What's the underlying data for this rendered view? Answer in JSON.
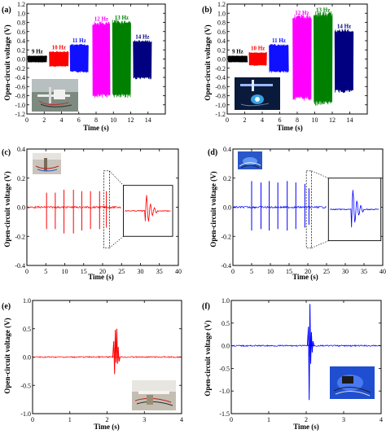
{
  "chart_data": [
    {
      "panel": "(a)",
      "type": "line",
      "xlabel": "Time (s)",
      "ylabel": "Open-circuit voltage (V)",
      "xlim": [
        0,
        16
      ],
      "ylim": [
        -1.2,
        1.2
      ],
      "xticks": [
        "0",
        "2",
        "4",
        "6",
        "8",
        "10",
        "12",
        "14"
      ],
      "yticks": [
        "-1.2",
        "-1.0",
        "-0.8",
        "-0.6",
        "-0.4",
        "-0.2",
        "0.0",
        "0.2",
        "0.4",
        "0.6",
        "0.8",
        "1.0",
        "1.2"
      ],
      "series": [
        {
          "name": "9 Hz",
          "color": "#000000",
          "x": [
            0.1,
            2.3
          ],
          "y": [
            -0.07,
            0.07
          ]
        },
        {
          "name": "10 Hz",
          "color": "#ff0000",
          "x": [
            2.6,
            4.8
          ],
          "y": [
            -0.16,
            0.16
          ]
        },
        {
          "name": "11 Hz",
          "color": "#1010ff",
          "x": [
            5.0,
            7.1
          ],
          "y": [
            -0.28,
            0.31
          ]
        },
        {
          "name": "12 Hz",
          "color": "#ff00ff",
          "x": [
            7.6,
            9.6
          ],
          "y": [
            -0.8,
            0.78
          ]
        },
        {
          "name": "13 Hz",
          "color": "#008000",
          "x": [
            9.9,
            12.0
          ],
          "y": [
            -0.8,
            0.81
          ]
        },
        {
          "name": "14 Hz",
          "color": "#000080",
          "x": [
            12.3,
            14.4
          ],
          "y": [
            -0.42,
            0.39
          ]
        }
      ]
    },
    {
      "panel": "(b)",
      "type": "line",
      "xlabel": "Time (s)",
      "ylabel": "Open-circuit voltage (V)",
      "xlim": [
        0,
        16
      ],
      "ylim": [
        -1.2,
        1.2
      ],
      "xticks": [
        "0",
        "2",
        "4",
        "6",
        "8",
        "10",
        "12",
        "14"
      ],
      "yticks": [
        "-1.2",
        "-1.0",
        "-0.8",
        "-0.6",
        "-0.4",
        "-0.2",
        "0.0",
        "0.2",
        "0.4",
        "0.6",
        "0.8",
        "1.0",
        "1.2"
      ],
      "series": [
        {
          "name": "9 Hz",
          "color": "#000000",
          "x": [
            0.1,
            2.3
          ],
          "y": [
            -0.07,
            0.07
          ]
        },
        {
          "name": "10 Hz",
          "color": "#ff0000",
          "x": [
            2.5,
            4.5
          ],
          "y": [
            -0.14,
            0.14
          ]
        },
        {
          "name": "11 Hz",
          "color": "#1010ff",
          "x": [
            4.8,
            7.0
          ],
          "y": [
            -0.28,
            0.31
          ]
        },
        {
          "name": "12 Hz",
          "color": "#ff00ff",
          "x": [
            7.5,
            9.6
          ],
          "y": [
            -0.86,
            0.92
          ]
        },
        {
          "name": "13 Hz",
          "color": "#008000",
          "x": [
            9.9,
            12.0
          ],
          "y": [
            -0.96,
            0.98
          ]
        },
        {
          "name": "14 Hz",
          "color": "#000080",
          "x": [
            12.3,
            14.4
          ],
          "y": [
            -0.7,
            0.62
          ]
        }
      ]
    },
    {
      "panel": "(c)",
      "type": "line",
      "xlabel": "Time (s)",
      "ylabel": "Open-circuit voltage (V)",
      "xlim": [
        0,
        40
      ],
      "ylim": [
        -0.4,
        0.4
      ],
      "xticks": [
        "0",
        "5",
        "10",
        "15",
        "20",
        "25",
        "30",
        "35",
        "40"
      ],
      "yticks": [
        "-0.4",
        "-0.2",
        "0.0",
        "0.2",
        "0.4"
      ],
      "color": "#ff0000",
      "signal_span": [
        0,
        25
      ],
      "spikes": [
        {
          "x": 5.2,
          "y": [
            -0.15,
            0.1
          ]
        },
        {
          "x": 7.5,
          "y": [
            -0.15,
            0.1
          ]
        },
        {
          "x": 9.8,
          "y": [
            -0.18,
            0.12
          ]
        },
        {
          "x": 12.3,
          "y": [
            -0.18,
            0.12
          ]
        },
        {
          "x": 14.5,
          "y": [
            -0.16,
            0.11
          ]
        },
        {
          "x": 16.8,
          "y": [
            -0.15,
            0.11
          ]
        },
        {
          "x": 19.2,
          "y": [
            -0.15,
            0.11
          ]
        },
        {
          "x": 21.0,
          "y": [
            -0.14,
            0.11
          ]
        }
      ],
      "zoom_window_x": [
        20.3,
        21.8
      ],
      "inset_x": [
        25.5,
        38.5
      ],
      "inset_y": [
        -0.2,
        0.15
      ]
    },
    {
      "panel": "(d)",
      "type": "line",
      "xlabel": "Time (s)",
      "ylabel": "Open-circuit voltage (V)",
      "xlim": [
        0,
        40
      ],
      "ylim": [
        -0.4,
        0.4
      ],
      "xticks": [
        "0",
        "5",
        "10",
        "15",
        "20",
        "25",
        "30",
        "35",
        "40"
      ],
      "yticks": [
        "-0.4",
        "-0.2",
        "0.0",
        "0.2",
        "0.4"
      ],
      "color": "#0000ff",
      "signal_span": [
        0,
        25
      ],
      "spikes": [
        {
          "x": 5.0,
          "y": [
            -0.16,
            0.18
          ]
        },
        {
          "x": 7.5,
          "y": [
            -0.15,
            0.17
          ]
        },
        {
          "x": 9.7,
          "y": [
            -0.16,
            0.18
          ]
        },
        {
          "x": 12.0,
          "y": [
            -0.15,
            0.17
          ]
        },
        {
          "x": 14.5,
          "y": [
            -0.16,
            0.18
          ]
        },
        {
          "x": 16.8,
          "y": [
            -0.15,
            0.17
          ]
        },
        {
          "x": 19.2,
          "y": [
            -0.14,
            0.16
          ]
        },
        {
          "x": 20.3,
          "y": [
            -0.12,
            0.13
          ]
        }
      ],
      "zoom_window_x": [
        19.6,
        21.0
      ],
      "inset_x": [
        25.5,
        39.5
      ],
      "inset_y": [
        -0.23,
        0.2
      ]
    },
    {
      "panel": "(e)",
      "type": "line",
      "xlabel": "Time (s)",
      "ylabel": "Open-circuit voltage (V)",
      "xlim": [
        0,
        4
      ],
      "ylim": [
        -1.0,
        1.0
      ],
      "xticks": [
        "0",
        "1",
        "2",
        "3",
        "4"
      ],
      "yticks": [
        "-1.0",
        "-0.5",
        "0.0",
        "0.5",
        "1.0"
      ],
      "color": "#ff0000",
      "burst": [
        {
          "x": 2.18,
          "y": 0.28
        },
        {
          "x": 2.2,
          "y": -0.3
        },
        {
          "x": 2.22,
          "y": 0.48
        },
        {
          "x": 2.24,
          "y": -0.1
        },
        {
          "x": 2.26,
          "y": 0.5
        },
        {
          "x": 2.28,
          "y": -0.12
        },
        {
          "x": 2.3,
          "y": 0.18
        },
        {
          "x": 2.32,
          "y": -0.08
        }
      ]
    },
    {
      "panel": "(f)",
      "type": "line",
      "xlabel": "Time (s)",
      "ylabel": "Open-circuit voltage (V)",
      "xlim": [
        0,
        4
      ],
      "ylim": [
        -1.5,
        1.0
      ],
      "xticks": [
        "0",
        "1",
        "2",
        "3",
        "4"
      ],
      "yticks": [
        "-1.5",
        "-1.0",
        "-0.5",
        "0.0",
        "0.5",
        "1.0"
      ],
      "color": "#0000ff",
      "burst": [
        {
          "x": 2.06,
          "y": 0.42
        },
        {
          "x": 2.08,
          "y": -1.2
        },
        {
          "x": 2.1,
          "y": 0.92
        },
        {
          "x": 2.12,
          "y": -0.4
        },
        {
          "x": 2.14,
          "y": 0.3
        },
        {
          "x": 2.16,
          "y": -0.15
        },
        {
          "x": 2.18,
          "y": 0.1
        }
      ]
    }
  ]
}
